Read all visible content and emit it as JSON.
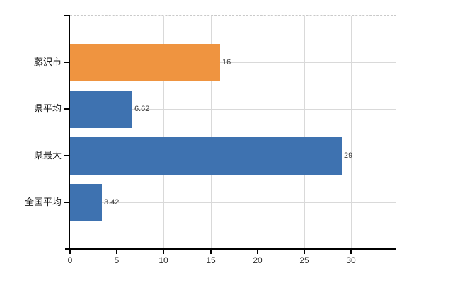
{
  "chart_data": {
    "type": "bar",
    "orientation": "horizontal",
    "title": "",
    "xlabel": "",
    "ylabel": "",
    "categories": [
      "藤沢市",
      "県平均",
      "県最大",
      "全国平均"
    ],
    "values": [
      16,
      6.62,
      29,
      3.42
    ],
    "value_labels": [
      "16",
      "6.62",
      "29",
      "3.42"
    ],
    "bar_colors": [
      "#EF9440",
      "#3E72B0",
      "#3E72B0",
      "#3E72B0"
    ],
    "xlim": [
      0,
      34.8
    ],
    "x_ticks": [
      0,
      5,
      10,
      15,
      20,
      25,
      30
    ],
    "grid": "on",
    "legend": "none",
    "colors": {
      "orange_series": "#EF9440",
      "blue_series": "#3E72B0",
      "grid": "#D9D9D9",
      "grid_top_dashed": "#C9C9C9",
      "axis": "#000000",
      "tick_label": "#2B2B2B",
      "category_label": "#1A1A1A",
      "value_label": "#383838",
      "background": "#FFFFFF"
    }
  }
}
